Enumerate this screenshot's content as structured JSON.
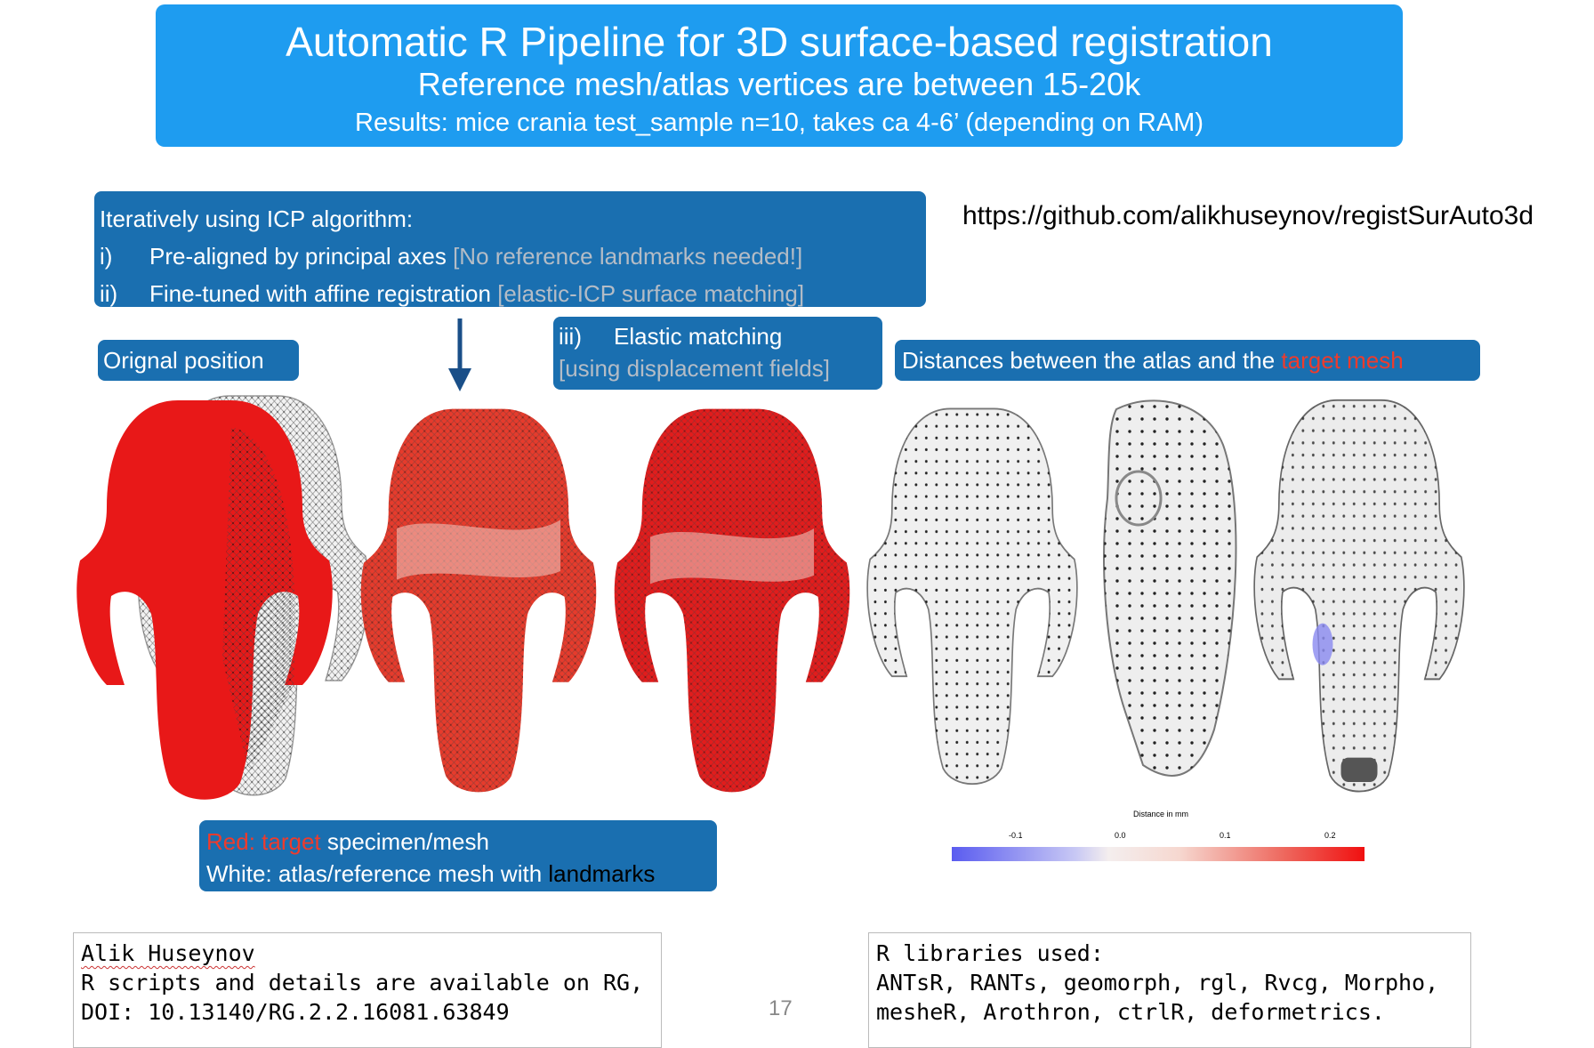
{
  "header": {
    "title": "Automatic R Pipeline for 3D surface-based registration",
    "subtitle": "Reference mesh/atlas vertices are between 15-20k",
    "results": "Results: mice crania test_sample n=10, takes ca 4-6’ (depending on RAM)"
  },
  "icp": {
    "heading": "Iteratively using ICP algorithm:",
    "steps": [
      {
        "num": "i)",
        "text": "Pre-aligned by principal axes ",
        "note": "[No reference landmarks needed!]"
      },
      {
        "num": "ii)",
        "text": "Fine-tuned with affine registration ",
        "note": "[elastic-ICP surface matching]"
      }
    ]
  },
  "url": "https://github.com/alikhuseynov/registSurAuto3d",
  "labels": {
    "original": "Orignal position",
    "elastic_num": "iii)",
    "elastic_text": "Elastic matching",
    "elastic_note": "[using displacement fields]",
    "distances_prefix": "Distances between the atlas and the ",
    "distances_highlight": "target mesh"
  },
  "legend": {
    "red_word": "Red: target",
    "red_rest": " specimen/mesh",
    "white_prefix": "White: atlas/reference mesh with ",
    "white_highlight": "landmarks"
  },
  "scale": {
    "title": "Distance in mm",
    "ticks": [
      "-0.1",
      "0.0",
      "0.1",
      "0.2"
    ]
  },
  "colors": {
    "title_bg": "#1e9cf0",
    "box_bg": "#1a6fb0",
    "target_red": "#ef3b2c",
    "note_grey": "#b4bcc6"
  },
  "footer": {
    "author": "Alik Huseynov",
    "scripts_line": "R scripts and details are available on RG,",
    "doi": "DOI: 10.13140/RG.2.2.16081.63849",
    "libs_heading": "R libraries used:",
    "libs_line1": "ANTsR, RANTs, geomorph, rgl, Rvcg, Morpho,",
    "libs_line2": "mesheR, Arothron, ctrlR, deformetrics.",
    "page_number": "17"
  }
}
